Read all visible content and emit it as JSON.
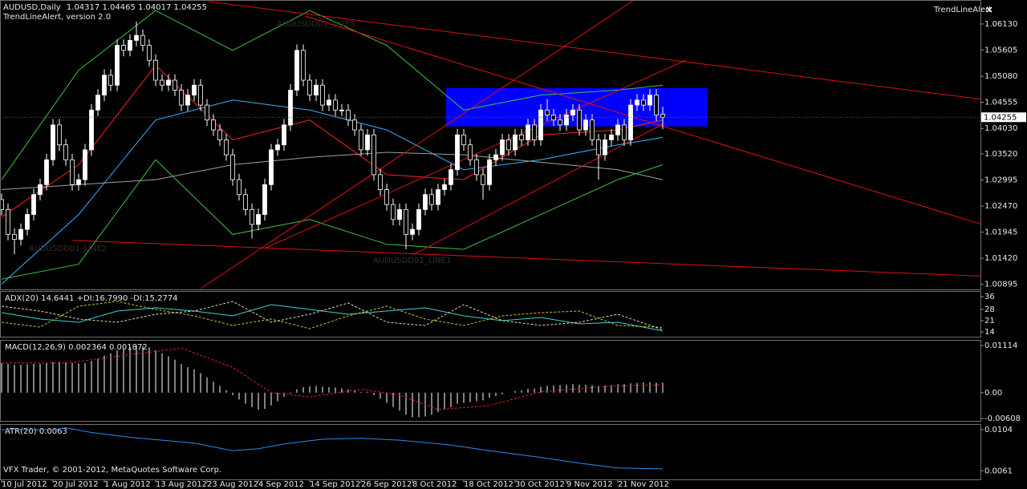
{
  "header": {
    "symbol": "AUDUSD,Daily",
    "open": 1.04317,
    "high": 1.04465,
    "low": 1.04017,
    "close": 1.04255,
    "indicator": "TrendLineAlert, version 2.0"
  },
  "alert_panel": {
    "title": "TrendLineAlert"
  },
  "footer": "VFX Trader, © 2001-2012, MetaQuotes Software Corp.",
  "chart_data": [
    {
      "type": "candlestick",
      "annotations": [
        "AUDUSDD01_LINE2",
        "AUDUSDD01_LINE1",
        "AUDUSDD01_LINE3"
      ],
      "xlim": [
        -0.25,
        152.5
      ],
      "xticks": [
        {
          "value": 0,
          "label": "10 Jul 2012"
        },
        {
          "value": 8,
          "label": "20 Jul 2012"
        },
        {
          "value": 16,
          "label": "1 Aug 2012"
        },
        {
          "value": 24,
          "label": "13 Aug 2012"
        },
        {
          "value": 32,
          "label": "23 Aug 2012"
        },
        {
          "value": 40,
          "label": "4 Sep 2012"
        },
        {
          "value": 48,
          "label": "14 Sep 2012"
        },
        {
          "value": 56,
          "label": "26 Sep 2012"
        },
        {
          "value": 64,
          "label": "8 Oct 2012"
        },
        {
          "value": 72,
          "label": "18 Oct 2012"
        },
        {
          "value": 80,
          "label": "30 Oct 2012"
        },
        {
          "value": 88,
          "label": "9 Nov 2012"
        },
        {
          "value": 96,
          "label": "21 Nov 2012"
        }
      ],
      "ylim": [
        1.0081,
        1.0658
      ],
      "yticks": [
        {
          "value": 1.0613,
          "label": "1.06130"
        },
        1.05605,
        {
          "value": 1.0508,
          "label": "1.05080"
        },
        1.04555,
        {
          "value": 1.0403,
          "label": "1.04030"
        },
        {
          "value": 1.0352,
          "label": "1.03520"
        },
        1.02995,
        {
          "value": 1.0247,
          "label": "1.02470"
        },
        1.01945,
        {
          "value": 1.0142,
          "label": "1.01420"
        },
        1.00895
      ],
      "up_color": "#ffffff",
      "down_color": "#000000",
      "open": [
        1.026,
        1.024,
        1.019,
        1.018,
        1.02,
        1.023,
        1.027,
        1.029,
        1.034,
        1.041,
        1.037,
        1.034,
        1.029,
        1.03,
        1.036,
        1.044,
        1.047,
        1.051,
        1.049,
        1.057,
        1.056,
        1.058,
        1.059,
        1.057,
        1.054,
        1.05,
        1.049,
        1.05,
        1.048,
        1.045,
        1.047,
        1.049,
        1.045,
        1.042,
        1.04,
        1.038,
        1.035,
        1.03,
        1.027,
        1.024,
        1.021,
        1.023,
        1.029,
        1.036,
        1.037,
        1.041,
        1.048,
        1.056,
        1.05,
        1.047,
        1.049,
        1.045,
        1.046,
        1.044,
        1.044,
        1.042,
        1.04,
        1.036,
        1.039,
        1.031,
        1.028,
        1.025,
        1.022,
        1.024,
        1.019,
        1.02,
        1.024,
        1.027,
        1.025,
        1.028,
        1.029,
        1.032,
        1.039,
        1.037,
        1.034,
        1.031,
        1.029,
        1.034,
        1.035,
        1.038,
        1.036,
        1.039,
        1.038,
        1.041,
        1.038,
        1.044,
        1.043,
        1.042,
        1.041,
        1.043,
        1.044,
        1.04,
        1.042,
        1.038,
        1.035,
        1.038,
        1.039,
        1.041,
        1.038,
        1.045,
        1.046,
        1.045,
        1.047,
        1.04317
      ],
      "high": [
        1.0272,
        1.0252,
        1.0202,
        1.0212,
        1.0242,
        1.0282,
        1.0302,
        1.0352,
        1.0422,
        1.0422,
        1.0382,
        1.0352,
        1.0312,
        1.0372,
        1.0452,
        1.0482,
        1.0522,
        1.0522,
        1.0582,
        1.0582,
        1.0592,
        1.0618,
        1.0602,
        1.0582,
        1.0552,
        1.0512,
        1.0512,
        1.0512,
        1.0492,
        1.0482,
        1.0502,
        1.0502,
        1.0462,
        1.0432,
        1.0412,
        1.0392,
        1.0362,
        1.0312,
        1.0282,
        1.0252,
        1.0242,
        1.0302,
        1.0372,
        1.0382,
        1.0422,
        1.0492,
        1.0572,
        1.0572,
        1.0512,
        1.0502,
        1.0502,
        1.0472,
        1.0472,
        1.0452,
        1.0452,
        1.0432,
        1.0412,
        1.0402,
        1.0402,
        1.0322,
        1.0292,
        1.0262,
        1.0252,
        1.0252,
        1.0212,
        1.0252,
        1.0282,
        1.0282,
        1.0292,
        1.0302,
        1.0332,
        1.0402,
        1.0402,
        1.0382,
        1.0352,
        1.0322,
        1.0352,
        1.0362,
        1.0392,
        1.0392,
        1.0402,
        1.0402,
        1.0422,
        1.0422,
        1.0452,
        1.0462,
        1.0442,
        1.0432,
        1.0442,
        1.0452,
        1.0452,
        1.0432,
        1.0432,
        1.0392,
        1.0392,
        1.0402,
        1.0422,
        1.0422,
        1.0462,
        1.0472,
        1.0472,
        1.0482,
        1.0482,
        1.04465
      ],
      "low": [
        1.0228,
        1.0178,
        1.015,
        1.0168,
        1.0188,
        1.0218,
        1.0258,
        1.0278,
        1.0328,
        1.0358,
        1.0328,
        1.0278,
        1.0278,
        1.0288,
        1.0348,
        1.0428,
        1.0458,
        1.0478,
        1.0478,
        1.0548,
        1.0548,
        1.0568,
        1.0558,
        1.0528,
        1.0488,
        1.0478,
        1.0478,
        1.0468,
        1.0438,
        1.0438,
        1.0458,
        1.0438,
        1.0408,
        1.0388,
        1.0368,
        1.0338,
        1.0288,
        1.0258,
        1.0228,
        1.0182,
        1.0198,
        1.0218,
        1.0278,
        1.0348,
        1.0358,
        1.0398,
        1.0468,
        1.0488,
        1.0458,
        1.0458,
        1.0438,
        1.0438,
        1.0428,
        1.0428,
        1.0408,
        1.0388,
        1.0348,
        1.0348,
        1.0298,
        1.0268,
        1.0238,
        1.0208,
        1.0208,
        1.016,
        1.0178,
        1.0188,
        1.0228,
        1.0238,
        1.0238,
        1.0268,
        1.0278,
        1.0308,
        1.0358,
        1.0328,
        1.0298,
        1.026,
        1.0278,
        1.0328,
        1.0338,
        1.0348,
        1.0348,
        1.0368,
        1.0368,
        1.0368,
        1.0368,
        1.0418,
        1.0408,
        1.0398,
        1.0398,
        1.0418,
        1.0388,
        1.0388,
        1.0368,
        1.03,
        1.0338,
        1.0368,
        1.0378,
        1.0368,
        1.0368,
        1.0438,
        1.0438,
        1.0438,
        1.0418,
        1.04017
      ],
      "close": [
        1.024,
        1.019,
        1.018,
        1.02,
        1.023,
        1.027,
        1.029,
        1.034,
        1.041,
        1.037,
        1.034,
        1.029,
        1.03,
        1.036,
        1.044,
        1.047,
        1.051,
        1.049,
        1.057,
        1.056,
        1.058,
        1.059,
        1.057,
        1.054,
        1.05,
        1.049,
        1.05,
        1.048,
        1.045,
        1.047,
        1.049,
        1.045,
        1.042,
        1.04,
        1.038,
        1.035,
        1.03,
        1.027,
        1.024,
        1.021,
        1.023,
        1.029,
        1.036,
        1.037,
        1.041,
        1.048,
        1.056,
        1.05,
        1.047,
        1.049,
        1.045,
        1.046,
        1.044,
        1.044,
        1.042,
        1.04,
        1.036,
        1.039,
        1.031,
        1.028,
        1.025,
        1.022,
        1.024,
        1.019,
        1.02,
        1.024,
        1.027,
        1.025,
        1.028,
        1.029,
        1.032,
        1.039,
        1.037,
        1.034,
        1.031,
        1.029,
        1.034,
        1.035,
        1.038,
        1.036,
        1.039,
        1.038,
        1.041,
        1.038,
        1.044,
        1.043,
        1.042,
        1.041,
        1.043,
        1.044,
        1.04,
        1.042,
        1.038,
        1.035,
        1.038,
        1.039,
        1.041,
        1.038,
        1.045,
        1.046,
        1.045,
        1.047,
        1.043,
        1.04255
      ],
      "series": [
        {
          "color": "#ff2020",
          "x": [
            0,
            12,
            24,
            36,
            48,
            60,
            72,
            84,
            96,
            103
          ],
          "values": [
            1.0225,
            1.033,
            1.053,
            1.038,
            1.042,
            1.031,
            1.03,
            1.039,
            1.04,
            1.042
          ]
        },
        {
          "color": "#3ab0ff",
          "x": [
            0,
            12,
            24,
            36,
            48,
            60,
            72,
            84,
            96,
            103
          ],
          "values": [
            1.009,
            1.023,
            1.042,
            1.046,
            1.044,
            1.04,
            1.032,
            1.034,
            1.037,
            1.0385
          ]
        },
        {
          "color": "#a0a0a0",
          "x": [
            0,
            12,
            24,
            36,
            48,
            60,
            72,
            84,
            96,
            103
          ],
          "values": [
            1.028,
            1.029,
            1.03,
            1.033,
            1.0345,
            1.0355,
            1.035,
            1.0335,
            1.032,
            1.03
          ]
        },
        {
          "color": "#40c040",
          "x": [
            0,
            12,
            24,
            36,
            48,
            60,
            72,
            84,
            96,
            103
          ],
          "values": [
            1.03,
            1.052,
            1.064,
            1.056,
            1.064,
            1.057,
            1.044,
            1.047,
            1.048,
            1.049
          ]
        },
        {
          "color": "#40c040",
          "x": [
            0,
            12,
            24,
            36,
            48,
            60,
            72,
            84,
            96,
            103
          ],
          "values": [
            1.01,
            1.013,
            1.034,
            1.019,
            1.022,
            1.017,
            1.016,
            1.023,
            1.03,
            1.033
          ]
        }
      ],
      "trendlines": [
        {
          "color": "#e01010",
          "x": [
            32.25,
            152.5
          ],
          "y": [
            1.0658,
            1.0462
          ]
        },
        {
          "color": "#e01010",
          "x": [
            47.25,
            154.75
          ],
          "y": [
            1.0629,
            1.0202
          ]
        },
        {
          "color": "#e01010",
          "x": [
            11,
            154.75
          ],
          "y": [
            1.0178,
            1.0105
          ]
        },
        {
          "color": "#e01010",
          "x": [
            31,
            98.5
          ],
          "y": [
            1.0081,
            1.0661
          ]
        },
        {
          "color": "#e01010",
          "x": [
            41,
            106.6
          ],
          "y": [
            1.0162,
            1.054
          ]
        },
        {
          "color": "#e01010",
          "x": [
            64.1,
            102.9
          ],
          "y": [
            1.0149,
            1.0411
          ]
        }
      ],
      "zone": {
        "color": "#0000ff",
        "x": [
          69.25,
          110
        ],
        "y": [
          1.0407,
          1.0484
        ]
      }
    },
    {
      "type": "line",
      "title": "ADX(20) 14.6441 +DI:16.7990 -DI:15.2774",
      "ylim": [
        11,
        39
      ],
      "yticks": [
        36,
        28,
        21,
        14
      ],
      "series": [
        {
          "color": "#40d0d0",
          "x": [
            0,
            6,
            12,
            18,
            24,
            30,
            36,
            42,
            48,
            54,
            60,
            66,
            72,
            78,
            84,
            90,
            96,
            103
          ],
          "values": [
            26,
            22,
            20,
            27,
            29,
            27,
            24,
            31,
            28,
            25,
            27,
            29,
            24,
            21,
            23,
            19,
            20,
            14.6441
          ]
        },
        {
          "color": "#c8c820",
          "dash": true,
          "x": [
            0,
            6,
            12,
            18,
            24,
            30,
            36,
            42,
            48,
            54,
            60,
            66,
            72,
            78,
            84,
            90,
            96,
            103
          ],
          "values": [
            20,
            17,
            30,
            33,
            28,
            24,
            18,
            22,
            16,
            24,
            30,
            22,
            18,
            24,
            26,
            27,
            18,
            16.799
          ]
        },
        {
          "color": "#e8d8b0",
          "dash": true,
          "x": [
            0,
            6,
            12,
            18,
            24,
            30,
            36,
            42,
            48,
            54,
            60,
            66,
            72,
            78,
            84,
            90,
            96,
            103
          ],
          "values": [
            30,
            27,
            22,
            20,
            25,
            27,
            33,
            20,
            25,
            32,
            20,
            18,
            31,
            21,
            18,
            20,
            25,
            15.2774
          ]
        }
      ]
    },
    {
      "type": "macd",
      "title": "MACD(12,26,9) 0.002364 0.001872",
      "ylim": [
        -0.00664,
        0.01227
      ],
      "yticks": [
        0.01114,
        {
          "value": 0,
          "label": "0.00"
        },
        -0.00608
      ],
      "color": "#ffffff",
      "values": [
        0.007,
        0.0068,
        0.0066,
        0.0066,
        0.0067,
        0.0068,
        0.0068,
        0.0069,
        0.0072,
        0.0073,
        0.0072,
        0.007,
        0.0069,
        0.007,
        0.0075,
        0.008,
        0.0088,
        0.0093,
        0.01,
        0.0105,
        0.0108,
        0.0111,
        0.011,
        0.0107,
        0.01,
        0.0093,
        0.0086,
        0.0078,
        0.0068,
        0.006,
        0.0055,
        0.0046,
        0.0036,
        0.0026,
        0.0016,
        0.0006,
        -0.0006,
        -0.0016,
        -0.0026,
        -0.0034,
        -0.004,
        -0.0038,
        -0.003,
        -0.002,
        -0.001,
        -0.0002,
        0.0008,
        0.0013,
        0.0015,
        0.0016,
        0.0014,
        0.0013,
        0.0012,
        0.001,
        0.0008,
        0.0006,
        0.0002,
        0.0002,
        -0.0006,
        -0.0014,
        -0.0024,
        -0.0034,
        -0.0042,
        -0.0052,
        -0.0058,
        -0.0058,
        -0.0056,
        -0.0052,
        -0.0046,
        -0.004,
        -0.0034,
        -0.0026,
        -0.0024,
        -0.0022,
        -0.002,
        -0.0018,
        -0.0012,
        -0.0008,
        -0.0004,
        0.0,
        0.0004,
        0.0006,
        0.0009,
        0.001,
        0.0014,
        0.0016,
        0.0017,
        0.0018,
        0.0019,
        0.002,
        0.0019,
        0.0019,
        0.0018,
        0.0016,
        0.0017,
        0.0018,
        0.002,
        0.002,
        0.0022,
        0.0023,
        0.0024,
        0.0025,
        0.0024,
        0.002364
      ],
      "signal": {
        "color": "#e02020",
        "x": [
          0,
          10,
          20,
          28,
          36,
          42,
          48,
          56,
          62,
          68,
          76,
          84,
          94,
          103
        ],
        "values": [
          0.007,
          0.007,
          0.009,
          0.0105,
          0.006,
          0.0,
          -0.001,
          0.0008,
          -0.0005,
          -0.004,
          -0.003,
          0.0002,
          0.0015,
          0.001872
        ]
      }
    },
    {
      "type": "line",
      "title": "ATR(20) 0.0063",
      "ylim": [
        0.0052,
        0.0109
      ],
      "yticks": [
        0.0104,
        0.0061
      ],
      "series": [
        {
          "color": "#2a8cf0",
          "x": [
            0,
            8,
            10,
            14,
            20,
            30,
            36,
            40,
            44,
            50,
            56,
            62,
            70,
            76,
            84,
            90,
            96,
            103
          ],
          "values": [
            0.0104,
            0.0104,
            0.0106,
            0.0101,
            0.0096,
            0.009,
            0.0082,
            0.0084,
            0.0089,
            0.0094,
            0.0095,
            0.0093,
            0.0088,
            0.0082,
            0.0075,
            0.0069,
            0.0064,
            0.0063
          ]
        }
      ]
    }
  ]
}
